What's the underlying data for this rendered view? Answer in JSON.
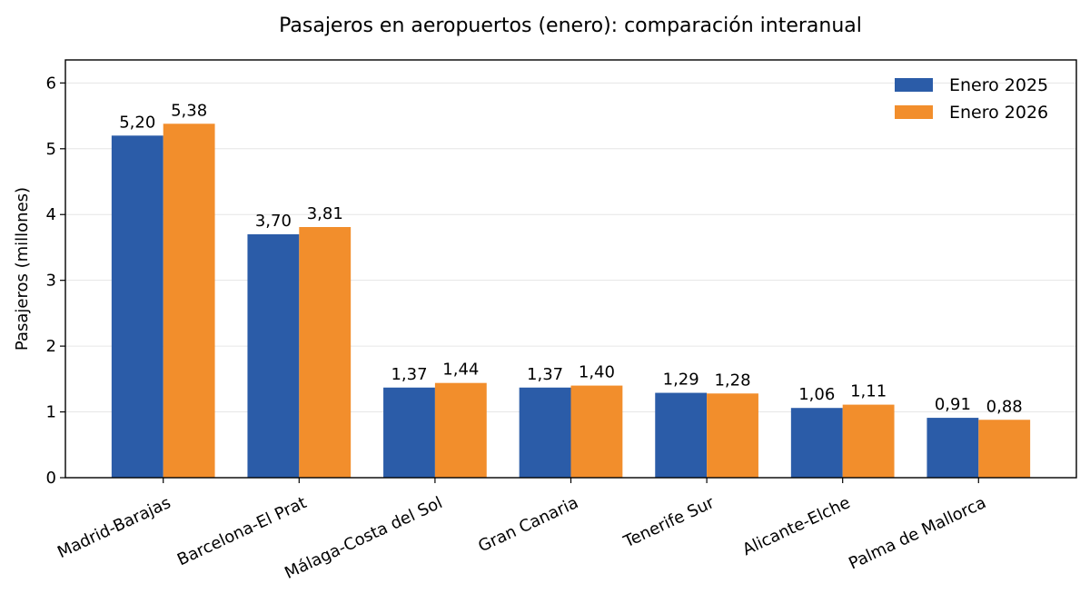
{
  "chart_data": {
    "type": "bar",
    "title": "Pasajeros en aeropuertos (enero): comparación interanual",
    "xlabel": "",
    "ylabel": "Pasajeros (millones)",
    "ylim": [
      0,
      6.35
    ],
    "yticks": [
      0,
      1,
      2,
      3,
      4,
      5,
      6
    ],
    "grid": "horizontal",
    "legend_position": "top-right",
    "categories": [
      "Madrid-Barajas",
      "Barcelona-El Prat",
      "Málaga-Costa del Sol",
      "Gran Canaria",
      "Tenerife Sur",
      "Alicante-Elche",
      "Palma de Mallorca"
    ],
    "series": [
      {
        "name": "Enero 2025",
        "color": "#2b5ca8",
        "values": [
          5.2,
          3.7,
          1.37,
          1.37,
          1.29,
          1.06,
          0.91
        ],
        "labels": [
          "5,20",
          "3,70",
          "1,37",
          "1,37",
          "1,29",
          "1,06",
          "0,91"
        ]
      },
      {
        "name": "Enero 2026",
        "color": "#f28e2c",
        "values": [
          5.38,
          3.81,
          1.44,
          1.4,
          1.28,
          1.11,
          0.88
        ],
        "labels": [
          "5,38",
          "3,81",
          "1,44",
          "1,40",
          "1,28",
          "1,11",
          "0,88"
        ]
      }
    ]
  }
}
